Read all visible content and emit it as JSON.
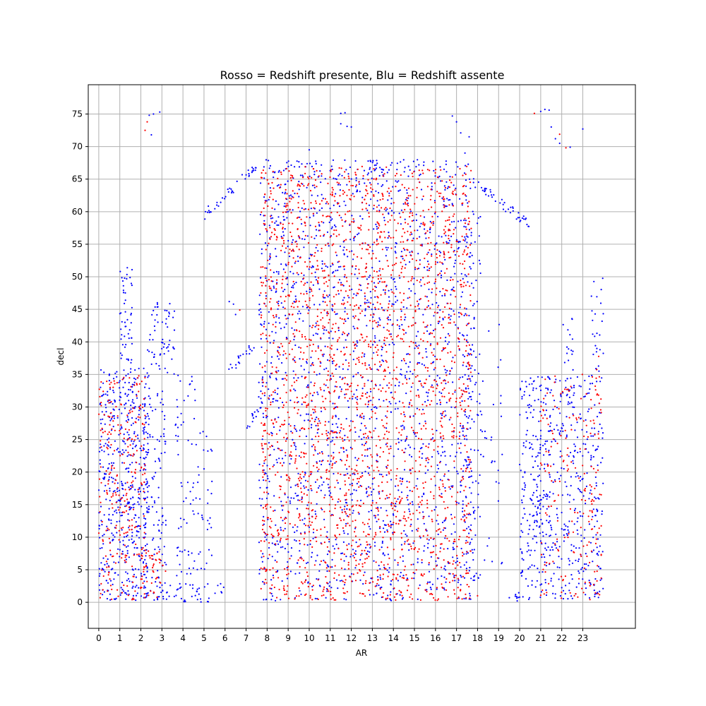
{
  "chart_data": {
    "type": "scatter",
    "title": "Rosso = Redshift presente, Blu = Redshift assente",
    "xlabel": "AR",
    "ylabel": "decl",
    "xlim": [
      -0.5,
      25.5
    ],
    "ylim": [
      -4,
      79.5
    ],
    "xticks": [
      0,
      1,
      2,
      3,
      4,
      5,
      6,
      7,
      8,
      9,
      10,
      11,
      12,
      13,
      14,
      15,
      16,
      17,
      18,
      19,
      20,
      21,
      22,
      23
    ],
    "yticks": [
      0,
      5,
      10,
      15,
      20,
      25,
      30,
      35,
      40,
      45,
      50,
      55,
      60,
      65,
      70,
      75
    ],
    "grid": true,
    "series": [
      {
        "name": "Redshift presente",
        "color": "#ff0000",
        "regions": [
          {
            "x": [
              0,
              2.2
            ],
            "y": [
              0.3,
              35
            ],
            "count": 260
          },
          {
            "x": [
              2.0,
              3.2
            ],
            "y": [
              0.3,
              8
            ],
            "count": 50
          },
          {
            "x": [
              7.7,
              17.7
            ],
            "y": [
              0.3,
              67
            ],
            "count": 2400
          },
          {
            "x": [
              21.0,
              23.9
            ],
            "y": [
              0.3,
              35
            ],
            "count": 190
          },
          {
            "x": [
              23.3,
              23.9
            ],
            "y": [
              25,
              40
            ],
            "count": 10
          }
        ],
        "points": [
          [
            2.2,
            72.5
          ],
          [
            2.3,
            73.8
          ],
          [
            20.7,
            75.1
          ],
          [
            21.9,
            71.9
          ],
          [
            22.2,
            69.8
          ],
          [
            6.7,
            44.9
          ],
          [
            18.0,
            1.0
          ]
        ]
      },
      {
        "name": "Redshift assente",
        "color": "#0000ff",
        "regions": [
          {
            "x": [
              0,
              2.4
            ],
            "y": [
              0.3,
              36
            ],
            "count": 520
          },
          {
            "x": [
              1.0,
              1.6
            ],
            "y": [
              36,
              52
            ],
            "count": 50
          },
          {
            "x": [
              2.1,
              3.2
            ],
            "y": [
              0.3,
              33
            ],
            "count": 130
          },
          {
            "x": [
              2.3,
              3.6
            ],
            "y": [
              35,
              47
            ],
            "count": 60
          },
          {
            "x": [
              3.6,
              4.6
            ],
            "y": [
              4,
              35
            ],
            "count": 60
          },
          {
            "x": [
              4.6,
              5.4
            ],
            "y": [
              5,
              27
            ],
            "count": 35
          },
          {
            "x": [
              3.0,
              6.0
            ],
            "y": [
              0,
              3
            ],
            "count": 45
          },
          {
            "x": [
              7.6,
              17.9
            ],
            "y": [
              0.2,
              68
            ],
            "count": 1900
          },
          {
            "x": [
              17.3,
              18.2
            ],
            "y": [
              0,
              60
            ],
            "count": 90
          },
          {
            "x": [
              20.0,
              24.0
            ],
            "y": [
              0.3,
              35
            ],
            "count": 520
          },
          {
            "x": [
              20.6,
              21.6
            ],
            "y": [
              10,
              27
            ],
            "count": 45
          },
          {
            "x": [
              22.0,
              22.6
            ],
            "y": [
              30,
              44
            ],
            "count": 25
          },
          {
            "x": [
              23.4,
              24.0
            ],
            "y": [
              35,
              50
            ],
            "count": 25
          },
          {
            "x": [
              18.2,
              19.2
            ],
            "y": [
              5,
              43
            ],
            "count": 30
          }
        ],
        "arcs": [
          {
            "x": [
              5.0,
              7.5
            ],
            "y": [
              59.5,
              67.0
            ],
            "count": 40
          },
          {
            "x": [
              7.5,
              17.3
            ],
            "y": [
              67.0,
              67.0
            ],
            "count": 30
          },
          {
            "x": [
              17.8,
              20.5
            ],
            "y": [
              64.5,
              58.0
            ],
            "count": 45
          },
          {
            "x": [
              6.0,
              7.5
            ],
            "y": [
              35.0,
              40.0
            ],
            "count": 20
          },
          {
            "x": [
              7.0,
              7.8
            ],
            "y": [
              27.0,
              30.5
            ],
            "count": 15
          },
          {
            "x": [
              19.5,
              20.2
            ],
            "y": [
              0.5,
              1.0
            ],
            "count": 10
          }
        ],
        "points": [
          [
            2.4,
            74.8
          ],
          [
            2.6,
            75.0
          ],
          [
            2.9,
            75.3
          ],
          [
            2.5,
            71.8
          ],
          [
            11.5,
            75.1
          ],
          [
            11.7,
            75.2
          ],
          [
            11.8,
            73.1
          ],
          [
            12.0,
            73.0
          ],
          [
            11.5,
            73.5
          ],
          [
            16.8,
            74.7
          ],
          [
            17.0,
            73.8
          ],
          [
            17.2,
            72.1
          ],
          [
            17.4,
            69.0
          ],
          [
            17.6,
            71.5
          ],
          [
            21.0,
            75.4
          ],
          [
            21.2,
            75.7
          ],
          [
            21.4,
            75.6
          ],
          [
            21.5,
            73.0
          ],
          [
            21.7,
            71.2
          ],
          [
            21.9,
            70.5
          ],
          [
            22.4,
            69.9
          ],
          [
            23.0,
            72.7
          ],
          [
            6.2,
            46.2
          ],
          [
            6.4,
            45.8
          ],
          [
            6.5,
            44.2
          ],
          [
            9.0,
            60.0
          ],
          [
            10.0,
            69.5
          ]
        ]
      }
    ]
  }
}
